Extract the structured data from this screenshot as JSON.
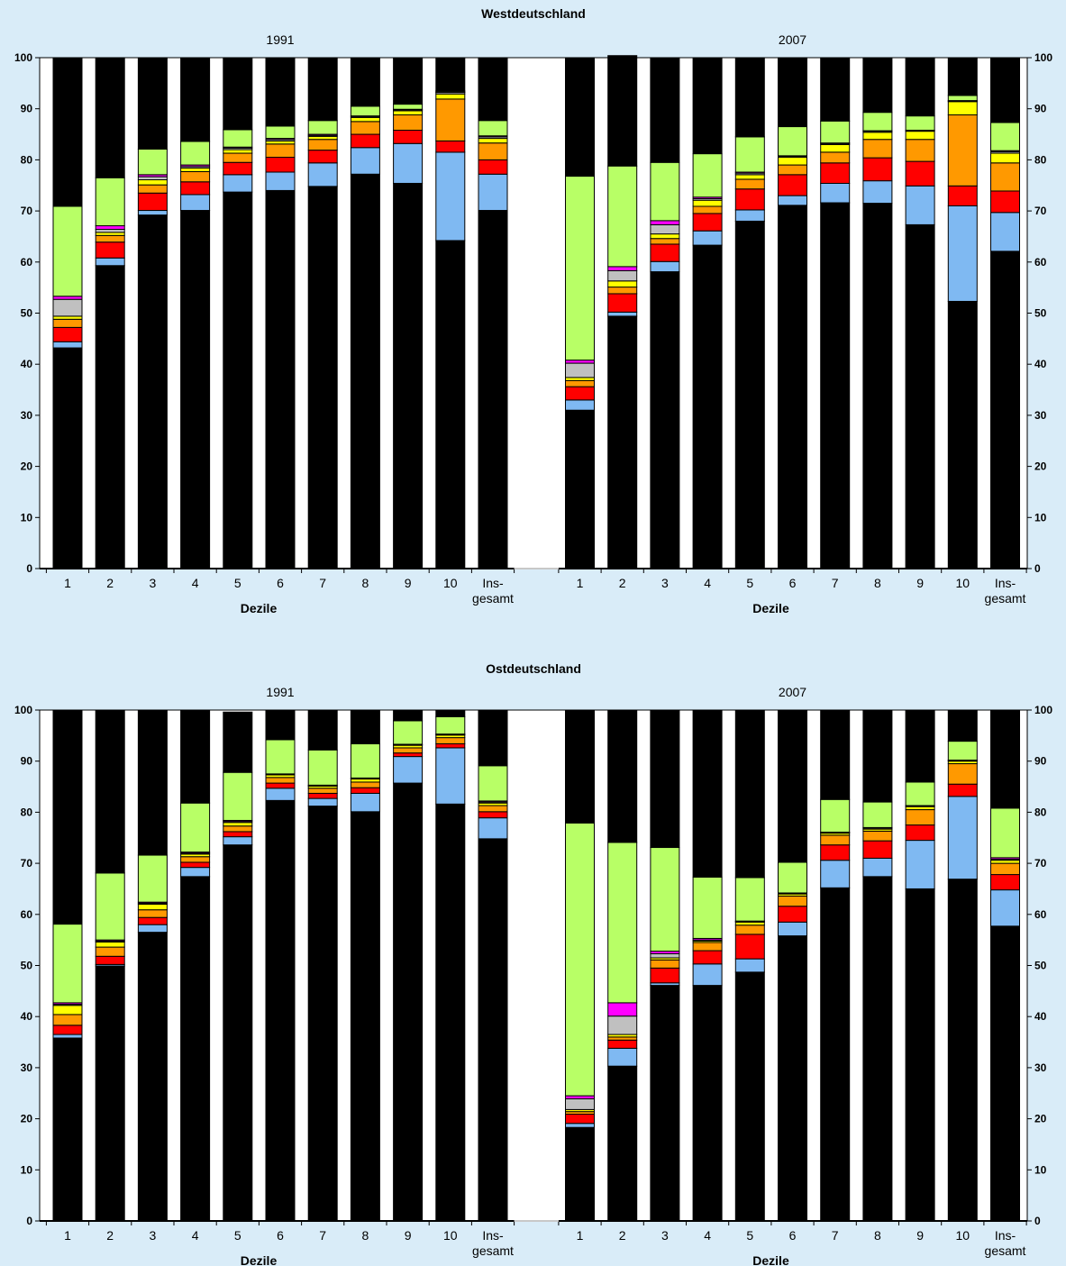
{
  "colors": {
    "background": "#d9ecf8",
    "segments": [
      "#000000",
      "#7fb9f2",
      "#ff0000",
      "#ff9900",
      "#ffff00",
      "#c0c0c0",
      "#ff00ff",
      "#b8ff66"
    ]
  },
  "chart_data": [
    {
      "type": "bar",
      "stacked": true,
      "title": "Westdeutschland",
      "ylim": [
        0,
        100
      ],
      "yticks": [
        0,
        10,
        20,
        30,
        40,
        50,
        60,
        70,
        80,
        90,
        100
      ],
      "panels": [
        {
          "label": "1991",
          "xlabel": "Dezile",
          "categories": [
            "1",
            "2",
            "3",
            "4",
            "5",
            "6",
            "7",
            "8",
            "9",
            "10",
            "Ins-\ngesamt"
          ],
          "stacks": [
            [
              43.2,
              1.2,
              2.8,
              1.6,
              0.6,
              3.3,
              0.6,
              17.6,
              29.1
            ],
            [
              59.3,
              1.5,
              3.1,
              1.3,
              0.6,
              0.6,
              0.7,
              9.4,
              23.5
            ],
            [
              69.2,
              0.9,
              3.4,
              1.6,
              1.0,
              0.6,
              0.4,
              5.0,
              17.9
            ],
            [
              70.1,
              3.1,
              2.5,
              2.0,
              0.7,
              0.3,
              0.3,
              4.6,
              16.4
            ],
            [
              73.7,
              3.4,
              2.4,
              1.8,
              0.7,
              0.3,
              0.2,
              3.4,
              14.1
            ],
            [
              74.0,
              3.6,
              2.9,
              2.6,
              0.6,
              0.3,
              0.2,
              2.4,
              13.4
            ],
            [
              74.8,
              4.6,
              2.5,
              2.1,
              0.6,
              0.2,
              0.2,
              2.7,
              12.3
            ],
            [
              77.2,
              5.2,
              2.6,
              2.5,
              0.8,
              0.2,
              0.1,
              1.9,
              9.5
            ],
            [
              75.4,
              7.8,
              2.6,
              3.0,
              0.8,
              0.2,
              0.1,
              1.0,
              9.1
            ],
            [
              64.2,
              17.3,
              2.2,
              8.2,
              1.0,
              0.3,
              0.1,
              0.2,
              6.5
            ],
            [
              70.1,
              7.1,
              2.8,
              3.3,
              0.9,
              0.3,
              0.2,
              3.0,
              12.3
            ]
          ]
        },
        {
          "label": "2007",
          "xlabel": "Dezile",
          "categories": [
            "1",
            "2",
            "3",
            "4",
            "5",
            "6",
            "7",
            "8",
            "9",
            "10",
            "Ins-\ngesamt"
          ],
          "stacks": [
            [
              31.0,
              2.0,
              2.6,
              1.2,
              0.6,
              2.8,
              0.6,
              36.0,
              23.2
            ],
            [
              49.4,
              0.8,
              3.6,
              1.3,
              1.2,
              2.0,
              0.8,
              19.7,
              21.6
            ],
            [
              58.1,
              2.0,
              3.4,
              1.1,
              0.9,
              1.8,
              0.8,
              11.4,
              20.5
            ],
            [
              63.3,
              2.8,
              3.4,
              1.4,
              1.2,
              0.3,
              0.3,
              8.5,
              18.8
            ],
            [
              68.0,
              2.2,
              4.1,
              1.9,
              0.9,
              0.3,
              0.2,
              6.9,
              15.5
            ],
            [
              71.1,
              1.9,
              4.1,
              1.9,
              1.5,
              0.2,
              0.1,
              5.7,
              13.5
            ],
            [
              71.6,
              3.8,
              4.0,
              2.1,
              1.5,
              0.2,
              0.1,
              4.3,
              12.4
            ],
            [
              71.5,
              4.4,
              4.5,
              3.6,
              1.4,
              0.2,
              0.1,
              3.6,
              10.7
            ],
            [
              67.3,
              7.6,
              4.8,
              4.3,
              1.6,
              0.1,
              0.1,
              2.8,
              11.4
            ],
            [
              52.3,
              18.7,
              3.9,
              13.9,
              2.6,
              0.1,
              0.1,
              1.0,
              7.4
            ],
            [
              62.1,
              7.6,
              4.2,
              5.5,
              1.9,
              0.3,
              0.2,
              5.5,
              12.7
            ]
          ]
        }
      ]
    },
    {
      "type": "bar",
      "stacked": true,
      "title": "Ostdeutschland",
      "ylim": [
        0,
        100
      ],
      "yticks": [
        0,
        10,
        20,
        30,
        40,
        50,
        60,
        70,
        80,
        90,
        100
      ],
      "panels": [
        {
          "label": "1991",
          "xlabel": "Dezile",
          "categories": [
            "1",
            "2",
            "3",
            "4",
            "5",
            "6",
            "7",
            "8",
            "9",
            "10",
            "Ins-\ngesamt"
          ],
          "stacks": [
            [
              35.8,
              0.7,
              1.8,
              2.1,
              1.8,
              0.2,
              0.3,
              15.4,
              41.9
            ],
            [
              49.9,
              0.3,
              1.6,
              1.8,
              1.0,
              0.2,
              0.2,
              13.1,
              31.9
            ],
            [
              56.5,
              1.5,
              1.4,
              1.5,
              1.1,
              0.2,
              0.2,
              9.2,
              28.4
            ],
            [
              67.4,
              1.8,
              1.0,
              1.1,
              0.5,
              0.2,
              0.2,
              9.6,
              18.2
            ],
            [
              73.6,
              1.6,
              1.0,
              1.1,
              0.7,
              0.2,
              0.2,
              9.4,
              11.8
            ],
            [
              82.3,
              2.4,
              1.0,
              1.1,
              0.5,
              0.1,
              0.1,
              6.7,
              5.8
            ],
            [
              81.2,
              1.5,
              1.0,
              1.0,
              0.4,
              0.1,
              0.1,
              6.9,
              7.8
            ],
            [
              80.1,
              3.6,
              1.1,
              1.1,
              0.6,
              0.1,
              0.1,
              6.7,
              6.6
            ],
            [
              85.7,
              5.2,
              0.7,
              1.0,
              0.5,
              0.1,
              0.1,
              4.6,
              2.1
            ],
            [
              81.6,
              11.0,
              0.8,
              1.2,
              0.5,
              0.1,
              0.1,
              3.4,
              1.3
            ],
            [
              74.8,
              4.1,
              1.2,
              1.2,
              0.5,
              0.2,
              0.2,
              6.9,
              10.9
            ]
          ]
        },
        {
          "label": "2007",
          "xlabel": "Dezile",
          "categories": [
            "1",
            "2",
            "3",
            "4",
            "5",
            "6",
            "7",
            "8",
            "9",
            "10",
            "Ins-\ngesamt"
          ],
          "stacks": [
            [
              18.3,
              0.8,
              1.8,
              0.5,
              0.4,
              2.1,
              0.6,
              53.4,
              22.1
            ],
            [
              30.3,
              3.5,
              1.6,
              0.6,
              0.5,
              3.6,
              2.6,
              31.4,
              25.9
            ],
            [
              46.1,
              0.5,
              2.9,
              1.6,
              0.4,
              0.8,
              0.5,
              20.3,
              26.9
            ],
            [
              46.1,
              4.2,
              2.6,
              1.6,
              0.3,
              0.2,
              0.3,
              12.0,
              32.7
            ],
            [
              48.7,
              2.6,
              4.8,
              1.8,
              0.6,
              0.1,
              0.1,
              8.5,
              32.8
            ],
            [
              55.8,
              2.7,
              3.1,
              2.0,
              0.4,
              0.1,
              0.1,
              6.0,
              29.8
            ],
            [
              65.2,
              5.4,
              3.0,
              1.9,
              0.4,
              0.1,
              0.1,
              6.4,
              17.5
            ],
            [
              67.4,
              3.6,
              3.4,
              1.9,
              0.4,
              0.2,
              0.1,
              5.0,
              18.0
            ],
            [
              65.0,
              9.5,
              3.0,
              3.0,
              0.6,
              0.1,
              0.1,
              4.6,
              14.1
            ],
            [
              66.9,
              16.2,
              2.4,
              4.0,
              0.5,
              0.1,
              0.1,
              3.7,
              6.1
            ],
            [
              57.7,
              7.1,
              3.0,
              2.2,
              0.6,
              0.2,
              0.3,
              9.7,
              19.2
            ]
          ]
        }
      ]
    }
  ]
}
